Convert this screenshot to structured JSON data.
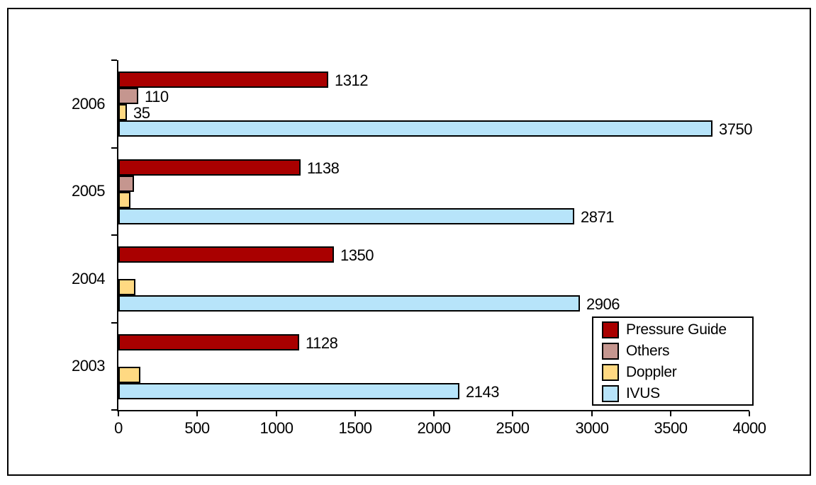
{
  "chart_data": {
    "type": "bar",
    "orientation": "horizontal",
    "title": "",
    "categories": [
      "2006",
      "2005",
      "2004",
      "2003"
    ],
    "series": [
      {
        "name": "Pressure Guide",
        "color": "#A90000",
        "values": [
          1312,
          1138,
          1350,
          1128
        ],
        "labels": [
          "1312",
          "1138",
          "1350",
          "1128"
        ]
      },
      {
        "name": "Others",
        "color": "#C5968F",
        "values": [
          110,
          80,
          0,
          0
        ],
        "labels": [
          "110",
          null,
          null,
          null
        ]
      },
      {
        "name": "Doppler",
        "color": "#FFD982",
        "values": [
          35,
          60,
          90,
          120
        ],
        "labels": [
          "35",
          null,
          null,
          null
        ]
      },
      {
        "name": "IVUS",
        "color": "#B7E4FA",
        "values": [
          3750,
          2871,
          2906,
          2143
        ],
        "labels": [
          "3750",
          "2871",
          "2906",
          "2143"
        ]
      }
    ],
    "x_axis": {
      "min": 0,
      "max": 4000,
      "tick_step": 500,
      "tick_labels": [
        "0",
        "500",
        "1000",
        "1500",
        "2000",
        "2500",
        "3000",
        "3500",
        "4000"
      ]
    },
    "legend": {
      "position": "inside-bottom-right",
      "entries": [
        "Pressure Guide",
        "Others",
        "Doppler",
        "IVUS"
      ]
    },
    "grid": false,
    "unlabeled_values_estimated": true
  },
  "colors": {
    "bar_border": "#000000",
    "axis": "#000000",
    "frame": "#000000",
    "background": "#FFFFFF",
    "text": "#000000"
  }
}
